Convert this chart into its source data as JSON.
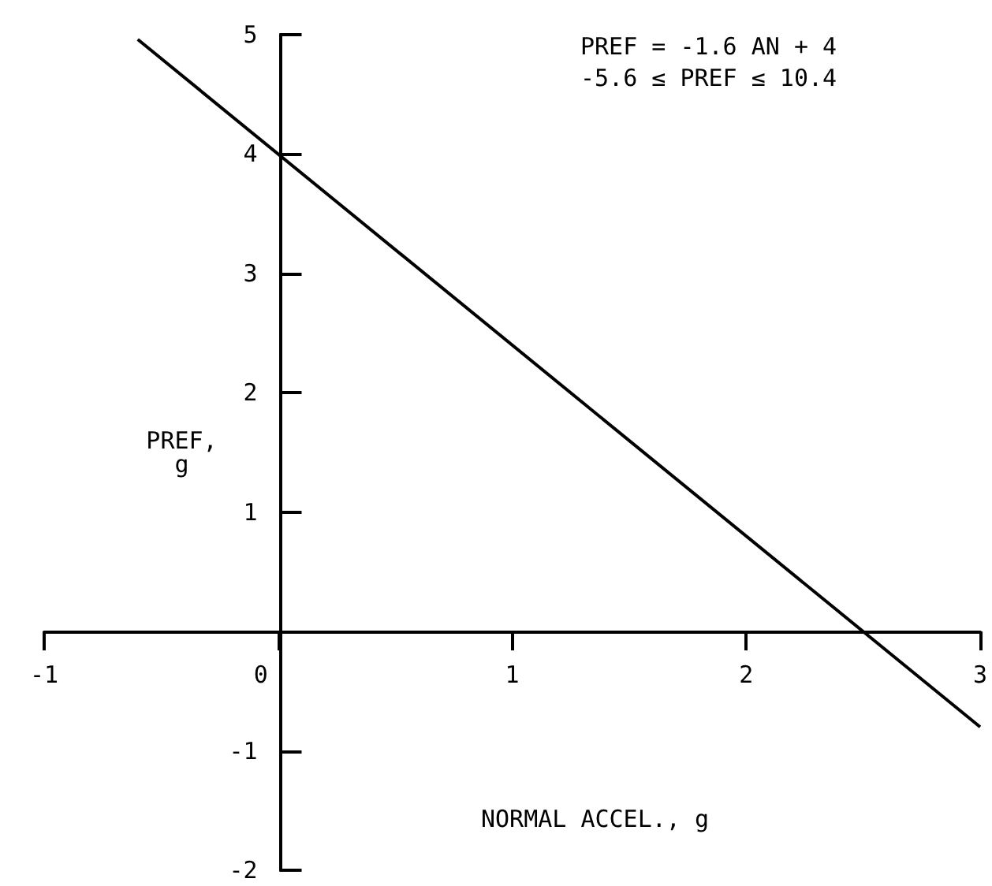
{
  "chart_data": {
    "type": "line",
    "xlabel": "NORMAL ACCEL., g",
    "ylabel": "PREF,\ng",
    "x": [
      -0.6,
      3
    ],
    "series": [
      {
        "color": "#000000",
        "values": [
          4.96,
          -0.8
        ]
      }
    ],
    "xlim": [
      -1,
      3
    ],
    "ylim": [
      -2,
      5
    ],
    "xticks": [
      -1,
      0,
      1,
      2,
      3
    ],
    "yticks": [
      -2,
      -1,
      1,
      2,
      3,
      4,
      5
    ],
    "annotations": [
      "PREF = -1.6 AN + 4",
      "-5.6 ≤ PREF ≤ 10.4"
    ],
    "marker": "none"
  }
}
